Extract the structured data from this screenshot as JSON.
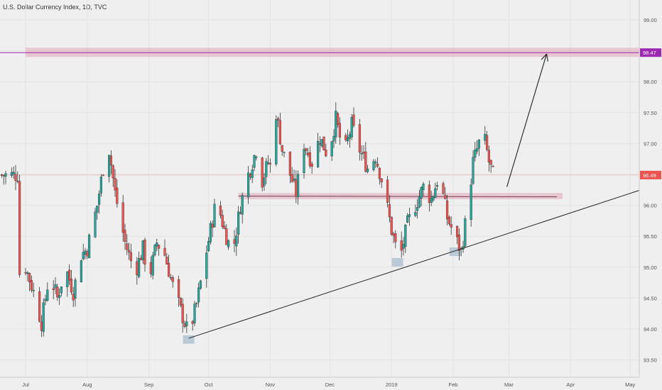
{
  "chart_data": {
    "type": "candlestick",
    "title": "U.S. Dollar Currency Index, 1D, TVC",
    "y_ticks": [
      "99.00",
      "98.50",
      "98.00",
      "97.50",
      "97.00",
      "96.50",
      "96.00",
      "95.50",
      "95.00",
      "94.50",
      "94.00",
      "93.50"
    ],
    "y_tick_values": [
      99.0,
      98.5,
      98.0,
      97.5,
      97.0,
      96.5,
      96.0,
      95.5,
      95.0,
      94.5,
      94.0,
      93.5
    ],
    "x_ticks": [
      {
        "label": "Jul",
        "day": 0
      },
      {
        "label": "Aug",
        "day": 31
      },
      {
        "label": "Sep",
        "day": 62
      },
      {
        "label": "Oct",
        "day": 92
      },
      {
        "label": "Nov",
        "day": 123
      },
      {
        "label": "Dec",
        "day": 153
      },
      {
        "label": "2019",
        "day": 184
      },
      {
        "label": "Feb",
        "day": 215
      },
      {
        "label": "Mar",
        "day": 243
      },
      {
        "label": "Apr",
        "day": 274
      },
      {
        "label": "May",
        "day": 304
      }
    ],
    "ylim": [
      93.3,
      99.3
    ],
    "price_tags": [
      {
        "label": "98.47",
        "value": 98.47,
        "color": "#9c27b0"
      },
      {
        "label": "96.49",
        "value": 96.49,
        "color": "#ef5350"
      }
    ],
    "target_line": {
      "value": 98.47,
      "color": "#9c27b0"
    },
    "last_price_line": {
      "value": 96.49,
      "color": "#ef5350"
    },
    "candle_colors": {
      "up": "#26a69a",
      "down": "#ef5350"
    },
    "key_points": [
      {
        "day": 82,
        "close": 93.9
      },
      {
        "day": 188,
        "close": 95.1
      },
      {
        "day": 219,
        "close": 95.25
      },
      {
        "day": 230,
        "close": 97.2
      },
      {
        "day": 235,
        "close": 96.49
      }
    ],
    "annotations": {
      "target_zone": {
        "from_day": 0,
        "to_day": 314,
        "low": 98.4,
        "high": 98.55
      },
      "support_zone": {
        "from_day": 107,
        "to_day": 270,
        "low": 96.1,
        "high": 96.2
      },
      "trendline": {
        "from_day": 82,
        "from_value": 93.85,
        "to_day": 314,
        "to_value": 96.3
      },
      "arrow": {
        "from_day": 242,
        "from_value": 96.3,
        "to_day": 262,
        "to_value": 98.45
      },
      "pivot_boxes": [
        {
          "day": 82,
          "value": 93.83
        },
        {
          "day": 187,
          "value": 95.08
        },
        {
          "day": 216,
          "value": 95.25
        }
      ]
    }
  }
}
